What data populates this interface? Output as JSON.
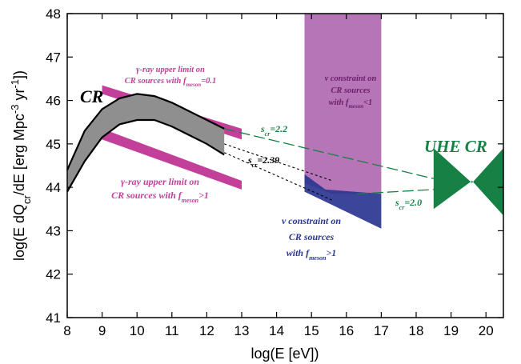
{
  "chart_data": {
    "type": "area",
    "xlabel": "log(E [eV])",
    "ylabel_parts": {
      "a": "log(E dQ",
      "sub1": "cr",
      "b": "/dE [erg Mpc",
      "sup1": "-3",
      "c": " yr",
      "sup2": "-1",
      "d": "])"
    },
    "xlim": [
      8,
      20.5
    ],
    "ylim": [
      41,
      48
    ],
    "xticks": [
      "8",
      "9",
      "10",
      "11",
      "12",
      "13",
      "14",
      "15",
      "16",
      "17",
      "18",
      "19",
      "20"
    ],
    "yticks": [
      "41",
      "42",
      "43",
      "44",
      "45",
      "46",
      "47",
      "48"
    ],
    "grid": false,
    "colors": {
      "cr_band": "#8f8f8f",
      "gamma": "#c2409a",
      "nu_upper": "#b675b6",
      "nu_lower": "#2a3590",
      "uhe": "#178044",
      "s_line": "#178044"
    },
    "regions": {
      "cr_band": {
        "upper": [
          [
            8,
            44.4
          ],
          [
            8.5,
            45.3
          ],
          [
            9,
            45.8
          ],
          [
            9.5,
            46.05
          ],
          [
            10,
            46.15
          ],
          [
            10.5,
            46.1
          ],
          [
            11,
            45.95
          ],
          [
            11.5,
            45.75
          ],
          [
            12,
            45.55
          ],
          [
            12.5,
            45.35
          ]
        ],
        "lower": [
          [
            8,
            43.9
          ],
          [
            8.5,
            44.6
          ],
          [
            9,
            45.15
          ],
          [
            9.5,
            45.45
          ],
          [
            10,
            45.55
          ],
          [
            10.5,
            45.55
          ],
          [
            11,
            45.4
          ],
          [
            11.5,
            45.2
          ],
          [
            12,
            45.0
          ],
          [
            12.5,
            44.75
          ]
        ]
      },
      "gamma_upper_fmeson_0p1": [
        [
          9.0,
          46.35
        ],
        [
          13.0,
          45.35
        ],
        [
          13.0,
          45.1
        ],
        [
          9.0,
          46.15
        ]
      ],
      "gamma_upper_fmeson_gt1": [
        [
          9.0,
          45.35
        ],
        [
          13.0,
          44.15
        ],
        [
          13.0,
          43.95
        ],
        [
          9.0,
          45.1
        ]
      ],
      "nu_constraint_fmeson_lt1": [
        [
          14.8,
          48.0
        ],
        [
          17.0,
          48.0
        ],
        [
          17.0,
          43.85
        ],
        [
          15.6,
          43.85
        ],
        [
          14.8,
          44.1
        ]
      ],
      "nu_constraint_fmeson_gt1": [
        [
          14.8,
          44.3
        ],
        [
          15.4,
          43.95
        ],
        [
          17.0,
          43.85
        ],
        [
          17.0,
          43.05
        ],
        [
          14.8,
          43.9
        ]
      ],
      "uhe_cr": [
        [
          18.5,
          44.9
        ],
        [
          19.6,
          44.1
        ],
        [
          20.5,
          44.9
        ],
        [
          20.5,
          43.35
        ],
        [
          19.6,
          44.15
        ],
        [
          18.5,
          43.5
        ]
      ]
    },
    "lines": {
      "s_2p2": [
        [
          12.5,
          45.35
        ],
        [
          18.5,
          44.2
        ]
      ],
      "s_2p0": [
        [
          16.3,
          43.85
        ],
        [
          18.5,
          43.95
        ]
      ],
      "s_2p39_upper": [
        [
          12.5,
          45.0
        ],
        [
          15.6,
          44.15
        ]
      ],
      "s_2p39_lower": [
        [
          12.5,
          44.8
        ],
        [
          15.6,
          43.7
        ]
      ]
    },
    "annotations": {
      "cr": "CR",
      "uhe_cr": "UHE CR",
      "s_2p2": {
        "s": "s",
        "sub": "cr",
        "val": "=2.2"
      },
      "s_2p39": {
        "s": "s",
        "sub": "cr",
        "val": "=2.39"
      },
      "s_2p0": {
        "s": "s",
        "sub": "cr",
        "val": "=2.0"
      },
      "gamma_0p1": {
        "l1": "γ-ray upper limit on",
        "l2a": "CR sources with f",
        "l2sub": "meson",
        "l2b": "=0.1"
      },
      "gamma_gt1": {
        "l1": "γ-ray upper limit on",
        "l2a": "CR sources with f",
        "l2sub": "meson",
        "l2b": ">1"
      },
      "nu_lt1": {
        "l1": "ν constraint on",
        "l2": "CR sources",
        "l3a": "with f",
        "l3sub": "meson",
        "l3b": "<1"
      },
      "nu_gt1": {
        "l1": "ν constraint on",
        "l2": "CR sources",
        "l3a": "with f",
        "l3sub": "meson",
        "l3b": ">1"
      }
    }
  }
}
